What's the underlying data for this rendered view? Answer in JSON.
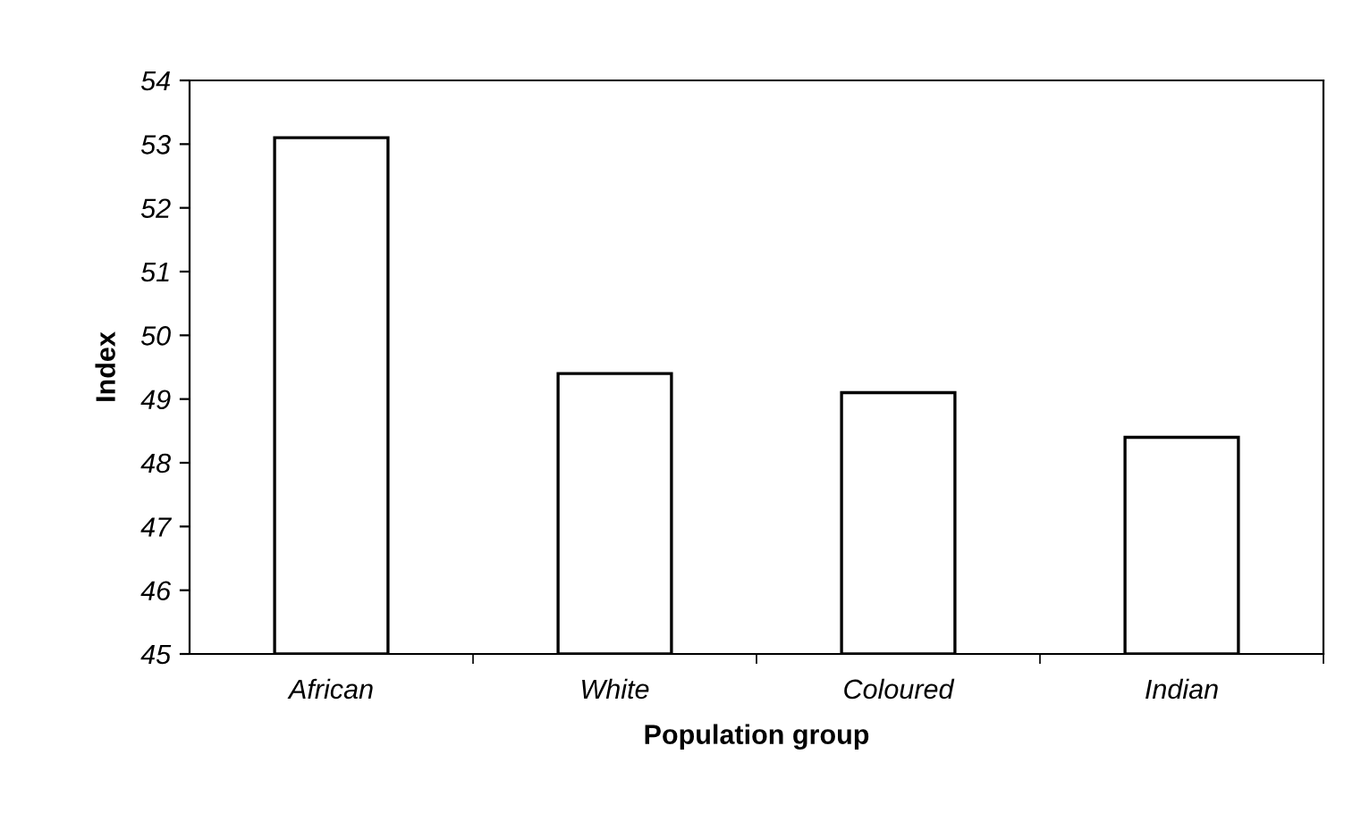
{
  "chart_data": {
    "type": "bar",
    "xlabel": "Population group",
    "ylabel": "Index",
    "categories": [
      "African",
      "White",
      "Coloured",
      "Indian"
    ],
    "values": [
      53.1,
      49.4,
      49.1,
      48.4
    ],
    "color": "#ffffff",
    "ylim": [
      45,
      54
    ],
    "yticks": [
      45,
      46,
      47,
      48,
      49,
      50,
      51,
      52,
      53,
      54
    ],
    "grid": false,
    "legend": false
  }
}
